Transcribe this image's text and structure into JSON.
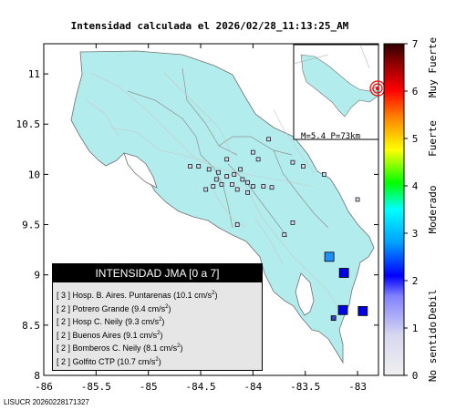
{
  "title": "Intensidad calculada el 2026/02/28_11:13:25_AM",
  "footer": "LISUCR 20260228171327",
  "colors": {
    "land": "#b2ecec",
    "sea": "#ffffff",
    "roads": "#c8c8c8",
    "boundaries": "#909090",
    "epicenter": "#ff0000"
  },
  "map": {
    "x_ticks": [
      "-86",
      "-85.5",
      "-85",
      "-84.5",
      "-84",
      "-83.5",
      "-83"
    ],
    "y_ticks": [
      "11",
      "10.5",
      "10",
      "9.5",
      "9",
      "8.5",
      "8"
    ],
    "lon_range": [
      -86,
      -82.8
    ],
    "lat_range": [
      8,
      11.3
    ],
    "inset_label": "M=5.4 P=73km"
  },
  "colorbar": {
    "ticks": [
      "0",
      "1",
      "2",
      "3",
      "4",
      "5",
      "6",
      "7"
    ],
    "categories": [
      "No sentido",
      "Debil",
      "Moderado",
      "Fuerte",
      "Muy Fuerte"
    ]
  },
  "legend": {
    "title": "INTENSIDAD JMA [0 a 7]",
    "entries": [
      {
        "level": "[ 3 ]",
        "station": "Hosp. B. Aires. Puntarenas",
        "value": "(10.1 cm/s",
        "unit_exp": "2",
        "close": ")"
      },
      {
        "level": "[ 2 ]",
        "station": "Potrero Grande",
        "value": "(9.4 cm/s",
        "unit_exp": "2",
        "close": ")"
      },
      {
        "level": "[ 2 ]",
        "station": "Hosp C. Neily",
        "value": "(9.3 cm/s",
        "unit_exp": "2",
        "close": ")"
      },
      {
        "level": "[ 2 ]",
        "station": "Buenos Aires",
        "value": "(9.1 cm/s",
        "unit_exp": "2",
        "close": ")"
      },
      {
        "level": "[ 2 ]",
        "station": "Bomberos C. Neily",
        "value": "(8.1 cm/s",
        "unit_exp": "2",
        "close": ")"
      },
      {
        "level": "[ 2 ]",
        "station": "Golfito CTP",
        "value": "(10.7 cm/s",
        "unit_exp": "2",
        "close": ")"
      }
    ]
  },
  "stations_highlight": [
    {
      "lon": -83.27,
      "lat": 9.18,
      "intensity": 3
    },
    {
      "lon": -83.13,
      "lat": 9.02,
      "intensity": 2
    },
    {
      "lon": -83.14,
      "lat": 8.65,
      "intensity": 2
    },
    {
      "lon": -82.95,
      "lat": 8.64,
      "intensity": 2
    },
    {
      "lon": -83.23,
      "lat": 8.57,
      "intensity": 1
    }
  ],
  "stations_small": [
    {
      "lon": -84.52,
      "lat": 10.08
    },
    {
      "lon": -84.42,
      "lat": 10.05
    },
    {
      "lon": -84.33,
      "lat": 10.02
    },
    {
      "lon": -84.25,
      "lat": 9.98
    },
    {
      "lon": -84.18,
      "lat": 10.0
    },
    {
      "lon": -84.1,
      "lat": 9.95
    },
    {
      "lon": -84.05,
      "lat": 9.92
    },
    {
      "lon": -84.0,
      "lat": 9.88
    },
    {
      "lon": -83.9,
      "lat": 9.88
    },
    {
      "lon": -83.82,
      "lat": 9.87
    },
    {
      "lon": -84.2,
      "lat": 9.9
    },
    {
      "lon": -84.3,
      "lat": 9.9
    },
    {
      "lon": -84.38,
      "lat": 9.88
    },
    {
      "lon": -84.45,
      "lat": 9.85
    },
    {
      "lon": -84.15,
      "lat": 9.85
    },
    {
      "lon": -84.05,
      "lat": 9.82
    },
    {
      "lon": -84.25,
      "lat": 10.15
    },
    {
      "lon": -84.0,
      "lat": 10.22
    },
    {
      "lon": -83.85,
      "lat": 10.35
    },
    {
      "lon": -83.62,
      "lat": 10.12
    },
    {
      "lon": -83.52,
      "lat": 10.08
    },
    {
      "lon": -83.32,
      "lat": 10.0
    },
    {
      "lon": -83.0,
      "lat": 9.75
    },
    {
      "lon": -83.62,
      "lat": 9.52
    },
    {
      "lon": -84.15,
      "lat": 9.5
    },
    {
      "lon": -83.7,
      "lat": 9.4
    },
    {
      "lon": -84.6,
      "lat": 10.08
    },
    {
      "lon": -84.12,
      "lat": 10.05
    },
    {
      "lon": -83.95,
      "lat": 10.15
    },
    {
      "lon": -84.35,
      "lat": 9.95
    }
  ],
  "epicenter": {
    "lon": -82.84,
    "lat": 8.63
  }
}
